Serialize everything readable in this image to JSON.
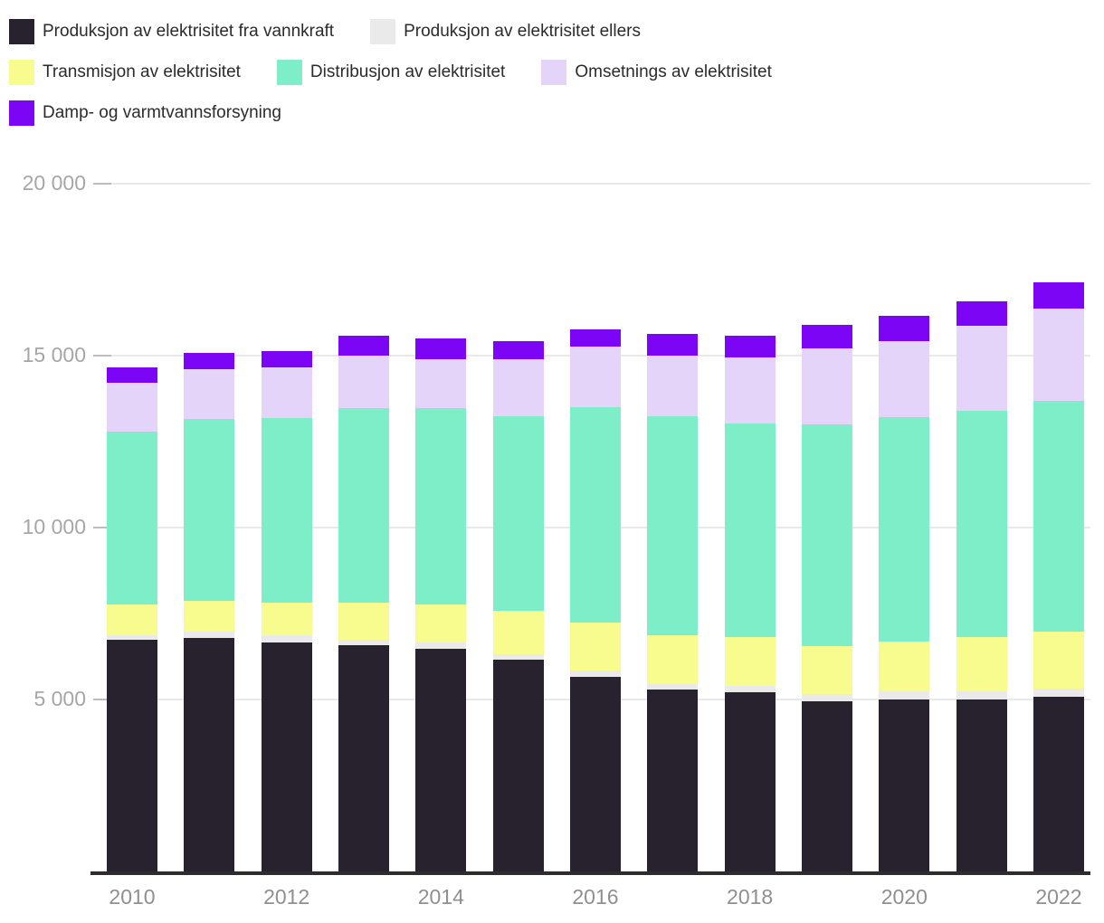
{
  "chart_data": {
    "type": "bar",
    "stacked": true,
    "title": "",
    "xlabel": "",
    "ylabel": "",
    "categories": [
      "2010",
      "2011",
      "2012",
      "2013",
      "2014",
      "2015",
      "2016",
      "2017",
      "2018",
      "2019",
      "2020",
      "2021",
      "2022"
    ],
    "series": [
      {
        "name": "Produksjon av elektrisitet fra vannkraft",
        "color": "#27222d",
        "values": [
          6730,
          6800,
          6650,
          6590,
          6480,
          6160,
          5670,
          5290,
          5220,
          4950,
          5010,
          5000,
          5090
        ]
      },
      {
        "name": "Produksjon av elektrisitet ellers",
        "color": "#eaeaea",
        "values": [
          140,
          180,
          210,
          160,
          180,
          160,
          180,
          160,
          180,
          220,
          240,
          230,
          230
        ]
      },
      {
        "name": "Transmisjon av elektrisitet",
        "color": "#f8fb8e",
        "values": [
          900,
          890,
          960,
          1070,
          1100,
          1260,
          1380,
          1420,
          1420,
          1370,
          1440,
          1580,
          1650
        ]
      },
      {
        "name": "Distribusjon av elektrisitet",
        "color": "#7eeec8",
        "values": [
          5020,
          5290,
          5360,
          5650,
          5710,
          5660,
          6260,
          6370,
          6200,
          6460,
          6520,
          6590,
          6720
        ]
      },
      {
        "name": "Omsetnings av elektrisitet",
        "color": "#e5d4fa",
        "values": [
          1430,
          1440,
          1480,
          1540,
          1430,
          1660,
          1770,
          1760,
          1930,
          2220,
          2210,
          2460,
          2670
        ]
      },
      {
        "name": "Damp- og varmtvannsforsyning",
        "color": "#7d05f6",
        "values": [
          440,
          480,
          480,
          570,
          600,
          510,
          510,
          620,
          640,
          680,
          730,
          730,
          760
        ]
      }
    ],
    "ylim": [
      0,
      20000
    ],
    "y_tick_values": [
      20000,
      15000,
      10000,
      5000
    ],
    "y_tick_labels": [
      "20 000",
      "15 000",
      "10 000",
      "5 000"
    ],
    "x_tick_indices": [
      0,
      2,
      4,
      6,
      8,
      10,
      12
    ],
    "x_tick_labels": [
      "2010",
      "2012",
      "2014",
      "2016",
      "2018",
      "2020",
      "2022"
    ],
    "legend_position": "top-left",
    "grid": "horizontal"
  }
}
